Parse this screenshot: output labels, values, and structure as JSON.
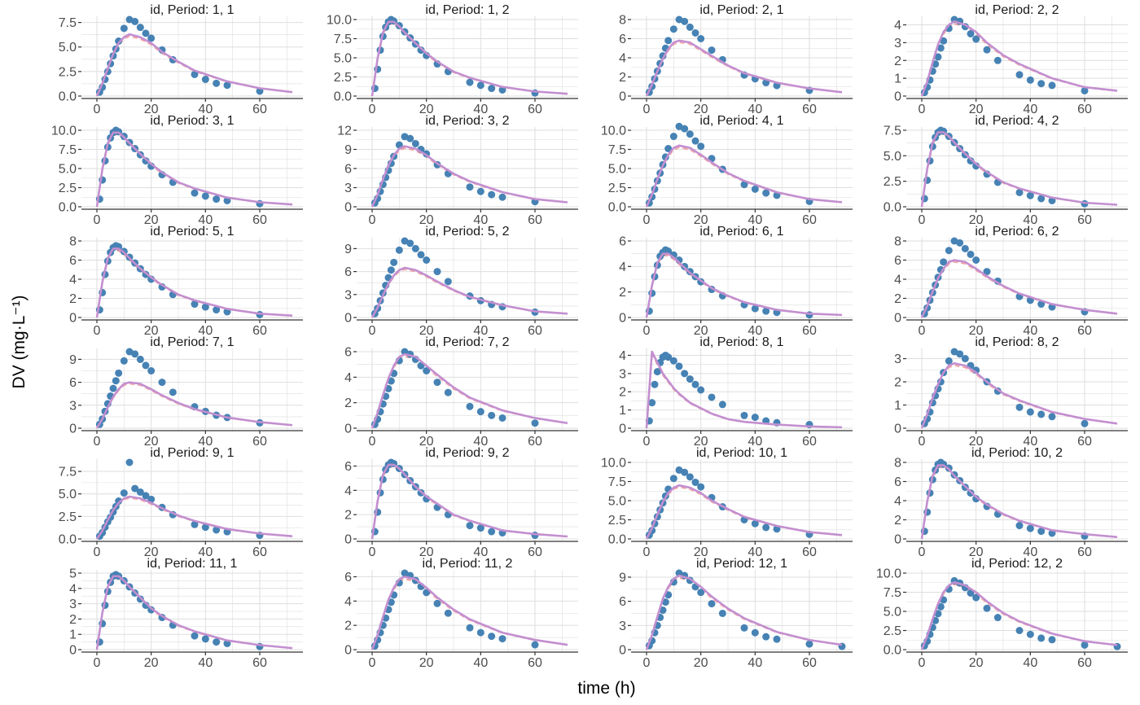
{
  "chart_data": {
    "type": "scatter",
    "layout": "facet-grid 6 rows x 4 columns",
    "xlabel": "time (h)",
    "ylabel": "DV (mg·L⁻¹)",
    "xlim": [
      0,
      72
    ],
    "x_ticks": [
      0,
      20,
      40,
      60
    ],
    "grid": true,
    "colors": {
      "observed": "#4682b4",
      "individual_pred": "#c38fd0",
      "population_pred": "#f08080",
      "grid": "#dedede",
      "axis": "#333333"
    },
    "obs_times": [
      1,
      2,
      3,
      4,
      5,
      6,
      7,
      8,
      10,
      12,
      14,
      16,
      18,
      20,
      24,
      28,
      36,
      40,
      44,
      48,
      60,
      72
    ],
    "pred_times": [
      0,
      2,
      4,
      6,
      8,
      10,
      12,
      16,
      20,
      24,
      30,
      36,
      48,
      60,
      72
    ],
    "panels": [
      {
        "title": "id, Period: 1, 1",
        "y_ticks": [
          "0.0",
          "2.5",
          "5.0",
          "7.5"
        ],
        "ymax": 7.8,
        "obs": [
          0.4,
          0.9,
          1.7,
          2.5,
          3.3,
          4.1,
          4.8,
          5.6,
          6.9,
          7.8,
          7.6,
          7.0,
          6.4,
          5.9,
          4.7,
          3.7,
          2.2,
          1.7,
          1.3,
          1.1,
          0.5,
          null
        ],
        "pred": [
          0,
          1.3,
          2.8,
          4.3,
          5.4,
          6.0,
          6.3,
          6.0,
          5.4,
          4.5,
          3.5,
          2.6,
          1.5,
          0.8,
          0.4
        ]
      },
      {
        "title": "id, Period: 1, 2",
        "y_ticks": [
          "0.0",
          "2.5",
          "5.0",
          "7.5",
          "10.0"
        ],
        "ymax": 10,
        "obs": [
          1.0,
          3.5,
          6.0,
          7.8,
          9.0,
          9.7,
          10,
          9.8,
          9.2,
          8.4,
          7.6,
          6.8,
          6.0,
          5.3,
          4.2,
          3.2,
          1.8,
          1.4,
          1.0,
          0.8,
          0.4,
          null
        ],
        "pred": [
          0,
          4.9,
          8.3,
          9.7,
          9.7,
          9.1,
          8.3,
          6.9,
          5.6,
          4.5,
          3.2,
          2.4,
          1.2,
          0.6,
          0.3
        ]
      },
      {
        "title": "id, Period: 2, 1",
        "y_ticks": [
          "0",
          "2",
          "4",
          "6",
          "8"
        ],
        "ymax": 8,
        "obs": [
          0.4,
          1.0,
          1.8,
          2.6,
          3.4,
          4.2,
          5.0,
          5.8,
          7.0,
          8.0,
          7.8,
          7.2,
          6.6,
          6.0,
          4.8,
          3.8,
          2.2,
          1.8,
          1.4,
          1.1,
          0.6,
          null
        ],
        "pred": [
          0,
          1.2,
          2.6,
          3.9,
          4.9,
          5.6,
          5.8,
          5.6,
          4.9,
          4.2,
          3.2,
          2.4,
          1.4,
          0.8,
          0.4
        ]
      },
      {
        "title": "id, Period: 2, 2",
        "y_ticks": [
          "0",
          "1",
          "2",
          "3",
          "4"
        ],
        "ymax": 4.3,
        "obs": [
          0.2,
          0.5,
          0.9,
          1.4,
          1.8,
          2.2,
          2.7,
          3.1,
          3.8,
          4.3,
          4.2,
          3.9,
          3.5,
          3.2,
          2.6,
          2.0,
          1.2,
          0.9,
          0.7,
          0.6,
          0.3,
          null
        ],
        "pred": [
          0,
          0.8,
          1.9,
          2.9,
          3.6,
          4.0,
          4.2,
          4.0,
          3.6,
          3.0,
          2.3,
          1.8,
          1.0,
          0.5,
          0.3
        ]
      },
      {
        "title": "id, Period: 3, 1",
        "y_ticks": [
          "0.0",
          "2.5",
          "5.0",
          "7.5",
          "10.0"
        ],
        "ymax": 10,
        "obs": [
          1.0,
          3.5,
          6.0,
          7.8,
          9.0,
          9.7,
          10,
          9.8,
          9.2,
          8.4,
          7.6,
          6.8,
          6.0,
          5.3,
          4.2,
          3.2,
          1.8,
          1.4,
          1.0,
          0.8,
          0.4,
          null
        ],
        "pred": [
          0,
          4.9,
          8.3,
          9.7,
          9.7,
          9.1,
          8.3,
          6.9,
          5.6,
          4.5,
          3.2,
          2.4,
          1.2,
          0.6,
          0.3
        ]
      },
      {
        "title": "id, Period: 3, 2",
        "y_ticks": [
          "0",
          "3",
          "6",
          "9",
          "12"
        ],
        "ymax": 12,
        "obs": [
          0.6,
          1.3,
          2.4,
          3.5,
          4.6,
          5.7,
          6.8,
          7.9,
          9.7,
          11,
          10.7,
          9.9,
          9.0,
          8.3,
          6.6,
          5.2,
          3.1,
          2.4,
          1.9,
          1.5,
          0.8,
          null
        ],
        "pred": [
          0,
          1.9,
          4.3,
          6.5,
          8.1,
          9.1,
          9.5,
          9.1,
          8.1,
          6.8,
          5.2,
          4.0,
          2.3,
          1.2,
          0.7
        ]
      },
      {
        "title": "id, Period: 4, 1",
        "y_ticks": [
          "0.0",
          "2.5",
          "5.0",
          "7.5",
          "10.0"
        ],
        "ymax": 10,
        "obs": [
          0.5,
          1.3,
          2.3,
          3.4,
          4.4,
          5.5,
          6.5,
          7.6,
          9.2,
          10.5,
          10.2,
          9.5,
          8.6,
          7.9,
          6.3,
          4.9,
          2.9,
          2.3,
          1.8,
          1.5,
          0.7,
          null
        ],
        "pred": [
          0,
          1.6,
          3.6,
          5.4,
          6.8,
          7.7,
          8.0,
          7.7,
          6.8,
          5.8,
          4.4,
          3.4,
          1.9,
          1.0,
          0.6
        ]
      },
      {
        "title": "id, Period: 4, 2",
        "y_ticks": [
          "0.0",
          "2.5",
          "5.0",
          "7.5"
        ],
        "ymax": 7.5,
        "obs": [
          0.8,
          2.6,
          4.5,
          5.9,
          6.8,
          7.3,
          7.5,
          7.4,
          6.9,
          6.3,
          5.7,
          5.1,
          4.5,
          4.0,
          3.2,
          2.4,
          1.4,
          1.1,
          0.8,
          0.6,
          0.3,
          null
        ],
        "pred": [
          0,
          3.7,
          6.3,
          7.3,
          7.3,
          6.9,
          6.3,
          5.2,
          4.2,
          3.4,
          2.4,
          1.8,
          0.9,
          0.4,
          0.2
        ]
      },
      {
        "title": "id, Period: 5, 1",
        "y_ticks": [
          "0",
          "2",
          "4",
          "6",
          "8"
        ],
        "ymax": 8,
        "obs": [
          0.8,
          2.6,
          4.5,
          5.9,
          6.8,
          7.3,
          7.5,
          7.4,
          6.9,
          6.3,
          5.7,
          5.1,
          4.5,
          4.0,
          3.2,
          2.4,
          1.4,
          1.1,
          0.8,
          0.6,
          0.3,
          null
        ],
        "pred": [
          0,
          3.7,
          6.2,
          7.2,
          7.2,
          6.8,
          6.2,
          5.1,
          4.2,
          3.4,
          2.4,
          1.8,
          0.9,
          0.4,
          0.2
        ]
      },
      {
        "title": "id, Period: 5, 2",
        "y_ticks": [
          "0",
          "3",
          "6",
          "9"
        ],
        "ymax": 10,
        "obs": [
          0.5,
          1.2,
          2.2,
          3.2,
          4.2,
          5.2,
          6.2,
          7.2,
          8.8,
          10,
          9.7,
          9.0,
          8.2,
          7.5,
          6.0,
          4.7,
          2.8,
          2.2,
          1.7,
          1.4,
          0.7,
          null
        ],
        "pred": [
          0,
          1.3,
          2.9,
          4.4,
          5.5,
          6.2,
          6.5,
          6.2,
          5.5,
          4.7,
          3.6,
          2.7,
          1.6,
          0.8,
          0.5
        ]
      },
      {
        "title": "id, Period: 6, 1",
        "y_ticks": [
          "0",
          "2",
          "4",
          "6"
        ],
        "ymax": 6,
        "obs": [
          0.5,
          1.9,
          3.2,
          4.1,
          4.8,
          5.1,
          5.3,
          5.2,
          4.9,
          4.5,
          4.0,
          3.6,
          3.2,
          2.8,
          2.2,
          1.7,
          1.0,
          0.7,
          0.5,
          0.4,
          0.2,
          null
        ],
        "pred": [
          0,
          2.5,
          4.3,
          5.0,
          5.0,
          4.7,
          4.3,
          3.5,
          2.9,
          2.3,
          1.7,
          1.2,
          0.6,
          0.3,
          0.2
        ]
      },
      {
        "title": "id, Period: 6, 2",
        "y_ticks": [
          "0",
          "2",
          "4",
          "6",
          "8"
        ],
        "ymax": 8,
        "obs": [
          0.4,
          1.0,
          1.8,
          2.6,
          3.4,
          4.2,
          5.0,
          5.8,
          7.0,
          8.0,
          7.8,
          7.2,
          6.6,
          6.0,
          4.8,
          3.8,
          2.2,
          1.8,
          1.4,
          1.1,
          0.6,
          null
        ],
        "pred": [
          0,
          1.2,
          2.7,
          4.1,
          5.1,
          5.8,
          6.0,
          5.8,
          5.1,
          4.3,
          3.3,
          2.5,
          1.4,
          0.8,
          0.4
        ]
      },
      {
        "title": "id, Period: 7, 1",
        "y_ticks": [
          "0",
          "3",
          "6",
          "9"
        ],
        "ymax": 10,
        "obs": [
          0.5,
          1.2,
          2.2,
          3.2,
          4.2,
          5.2,
          6.2,
          7.2,
          8.8,
          10,
          9.7,
          9.0,
          8.2,
          7.5,
          6.0,
          4.7,
          2.8,
          2.2,
          1.7,
          1.4,
          0.7,
          null
        ],
        "pred": [
          0,
          1.2,
          2.7,
          4.1,
          5.1,
          5.8,
          6.0,
          5.8,
          5.1,
          4.3,
          3.3,
          2.5,
          1.4,
          0.8,
          0.4
        ]
      },
      {
        "title": "id, Period: 7, 2",
        "y_ticks": [
          "0",
          "2",
          "4",
          "6"
        ],
        "ymax": 6,
        "obs": [
          0.3,
          0.7,
          1.3,
          1.9,
          2.5,
          3.1,
          3.7,
          4.3,
          5.3,
          6.0,
          5.8,
          5.4,
          4.9,
          4.5,
          3.6,
          2.8,
          1.7,
          1.3,
          1.0,
          0.8,
          0.4,
          null
        ],
        "pred": [
          0,
          1.2,
          2.6,
          3.9,
          4.9,
          5.6,
          5.8,
          5.6,
          4.9,
          4.2,
          3.2,
          2.4,
          1.4,
          0.8,
          0.4
        ]
      },
      {
        "title": "id, Period: 8, 1",
        "y_ticks": [
          "0",
          "1",
          "2",
          "3",
          "4"
        ],
        "ymax": 4.2,
        "obs": [
          0.4,
          1.4,
          2.4,
          3.1,
          3.6,
          3.9,
          4.0,
          3.9,
          3.7,
          3.4,
          3.0,
          2.7,
          2.4,
          2.1,
          1.7,
          1.3,
          0.7,
          0.6,
          0.4,
          0.3,
          0.2,
          null
        ],
        "pred": [
          0,
          4.2,
          3.6,
          3.0,
          2.6,
          2.2,
          1.9,
          1.4,
          1.1,
          0.8,
          0.5,
          0.35,
          0.2,
          0.1,
          0.05
        ]
      },
      {
        "title": "id, Period: 8, 2",
        "y_ticks": [
          "0",
          "1",
          "2",
          "3"
        ],
        "ymax": 3.3,
        "obs": [
          0.2,
          0.4,
          0.7,
          1.1,
          1.4,
          1.7,
          2.0,
          2.4,
          2.9,
          3.3,
          3.2,
          3.0,
          2.7,
          2.5,
          2.0,
          1.6,
          0.9,
          0.7,
          0.6,
          0.5,
          0.2,
          null
        ],
        "pred": [
          0,
          0.6,
          1.3,
          1.9,
          2.4,
          2.7,
          2.8,
          2.7,
          2.4,
          2.0,
          1.5,
          1.2,
          0.7,
          0.4,
          0.2
        ]
      },
      {
        "title": "id, Period: 9, 1",
        "y_ticks": [
          "0.0",
          "2.5",
          "5.0",
          "7.5"
        ],
        "ymax": 8.5,
        "obs": [
          0.3,
          0.7,
          1.3,
          1.9,
          2.4,
          3.0,
          3.6,
          4.2,
          5.1,
          8.5,
          5.6,
          5.2,
          4.8,
          4.4,
          3.5,
          2.7,
          1.6,
          1.3,
          1.0,
          0.8,
          0.4,
          null
        ],
        "pred": [
          0,
          0.9,
          2.1,
          3.2,
          4.0,
          4.5,
          4.7,
          4.5,
          4.0,
          3.4,
          2.6,
          2.0,
          1.1,
          0.6,
          0.3
        ]
      },
      {
        "title": "id, Period: 9, 2",
        "y_ticks": [
          "0",
          "2",
          "4",
          "6"
        ],
        "ymax": 6.3,
        "obs": [
          0.6,
          2.2,
          3.8,
          4.9,
          5.7,
          6.1,
          6.3,
          6.2,
          5.8,
          5.3,
          4.8,
          4.3,
          3.8,
          3.3,
          2.6,
          2.0,
          1.1,
          0.9,
          0.6,
          0.5,
          0.3,
          null
        ],
        "pred": [
          0,
          3.1,
          5.3,
          6.1,
          6.1,
          5.8,
          5.3,
          4.3,
          3.5,
          2.9,
          2.0,
          1.5,
          0.7,
          0.4,
          0.2
        ]
      },
      {
        "title": "id, Period: 10, 1",
        "y_ticks": [
          "0.0",
          "2.5",
          "5.0",
          "7.5",
          "10.0"
        ],
        "ymax": 10,
        "obs": [
          0.5,
          1.1,
          2.0,
          2.9,
          3.8,
          4.7,
          5.6,
          6.5,
          7.9,
          9.0,
          8.7,
          8.1,
          7.4,
          6.8,
          5.4,
          4.2,
          2.5,
          2.0,
          1.5,
          1.3,
          0.6,
          null
        ],
        "pred": [
          0,
          1.4,
          3.2,
          4.8,
          6.0,
          6.7,
          7.0,
          6.7,
          6.0,
          5.0,
          3.9,
          2.9,
          1.7,
          0.9,
          0.5
        ]
      },
      {
        "title": "id, Period: 10, 2",
        "y_ticks": [
          "0",
          "2",
          "4",
          "6",
          "8"
        ],
        "ymax": 8,
        "obs": [
          0.8,
          2.8,
          4.8,
          6.2,
          7.2,
          7.8,
          8.0,
          7.8,
          7.4,
          6.7,
          6.1,
          5.4,
          4.8,
          4.2,
          3.4,
          2.6,
          1.4,
          1.1,
          0.8,
          0.6,
          0.3,
          null
        ],
        "pred": [
          0,
          3.9,
          6.6,
          7.7,
          7.7,
          7.3,
          6.6,
          5.5,
          4.4,
          3.6,
          2.6,
          1.9,
          0.9,
          0.5,
          0.2
        ]
      },
      {
        "title": "id, Period: 11, 1",
        "y_ticks": [
          "0",
          "1",
          "2",
          "3",
          "4",
          "5"
        ],
        "ymax": 5,
        "obs": [
          0.5,
          1.7,
          2.9,
          3.8,
          4.4,
          4.8,
          4.9,
          4.8,
          4.5,
          4.1,
          3.7,
          3.3,
          2.9,
          2.6,
          2.1,
          1.6,
          0.9,
          0.7,
          0.5,
          0.4,
          0.2,
          null
        ],
        "pred": [
          0,
          2.4,
          4.1,
          4.8,
          4.8,
          4.5,
          4.1,
          3.4,
          2.7,
          2.2,
          1.6,
          1.2,
          0.6,
          0.3,
          0.1
        ]
      },
      {
        "title": "id, Period: 11, 2",
        "y_ticks": [
          "0",
          "2",
          "4",
          "6"
        ],
        "ymax": 6.3,
        "obs": [
          0.3,
          0.8,
          1.4,
          2.0,
          2.6,
          3.3,
          3.9,
          4.5,
          5.5,
          6.3,
          6.1,
          5.7,
          5.2,
          4.7,
          3.8,
          3.0,
          1.8,
          1.4,
          1.1,
          0.9,
          0.4,
          null
        ],
        "pred": [
          0,
          1.2,
          2.7,
          4.1,
          5.1,
          5.8,
          6.0,
          5.8,
          5.1,
          4.3,
          3.3,
          2.5,
          1.4,
          0.8,
          0.4
        ]
      },
      {
        "title": "id, Period: 12, 1",
        "y_ticks": [
          "0",
          "3",
          "6",
          "9"
        ],
        "ymax": 9.5,
        "obs": [
          0.5,
          1.1,
          2.1,
          3.0,
          4.0,
          4.9,
          5.9,
          6.8,
          8.4,
          9.5,
          9.2,
          8.6,
          7.8,
          7.1,
          5.7,
          4.5,
          2.7,
          2.1,
          1.6,
          1.3,
          0.7,
          0.4
        ],
        "pred": [
          0,
          1.8,
          4.1,
          6.3,
          7.8,
          8.8,
          9.2,
          8.8,
          7.8,
          6.6,
          5.1,
          3.9,
          2.2,
          1.2,
          0.6
        ]
      },
      {
        "title": "id, Period: 12, 2",
        "y_ticks": [
          "0.0",
          "2.5",
          "5.0",
          "7.5",
          "10.0"
        ],
        "ymax": 10,
        "obs": [
          0.5,
          1.1,
          2.0,
          2.9,
          3.8,
          4.7,
          5.6,
          6.5,
          7.9,
          9.0,
          8.7,
          8.1,
          7.4,
          6.8,
          5.4,
          4.2,
          2.5,
          2.0,
          1.5,
          1.3,
          0.6,
          0.4
        ],
        "pred": [
          0,
          1.8,
          4.0,
          6.0,
          7.5,
          8.4,
          8.8,
          8.4,
          7.5,
          6.3,
          4.8,
          3.7,
          2.1,
          1.1,
          0.6
        ]
      }
    ]
  }
}
